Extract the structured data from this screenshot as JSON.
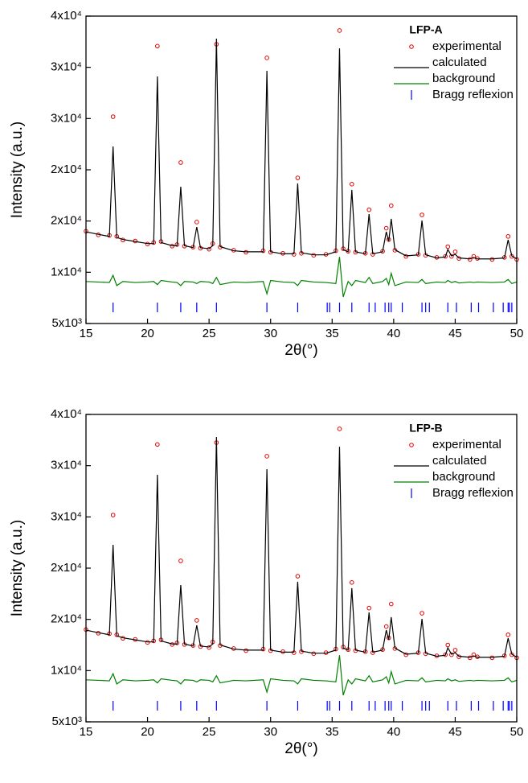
{
  "chart_data": [
    {
      "type": "line",
      "title": "LFP-A",
      "x_label": "2θ(°)",
      "y_label": "Intensity (a.u.)",
      "xlim": [
        15,
        50
      ],
      "xticks": [
        15,
        20,
        25,
        30,
        35,
        40,
        45,
        50
      ],
      "ylim": [
        5000,
        35000
      ],
      "yticks": [
        {
          "value": 5000,
          "label": "5x10³"
        },
        {
          "value": 10000,
          "label": "1x10⁴"
        },
        {
          "value": 15000,
          "label": "2x10⁴"
        },
        {
          "value": 20000,
          "label": "2x10⁴"
        },
        {
          "value": 25000,
          "label": "3x10⁴"
        },
        {
          "value": 30000,
          "label": "3x10⁴"
        },
        {
          "value": 35000,
          "label": "4x10⁴"
        }
      ],
      "x": [
        15,
        16,
        16.9,
        17.2,
        17.5,
        18,
        19,
        20,
        20.5,
        20.8,
        21.1,
        22,
        22.4,
        22.7,
        23,
        23.7,
        24,
        24.3,
        25,
        25.3,
        25.6,
        25.9,
        27,
        28,
        29.4,
        29.7,
        30,
        31,
        31.9,
        32.2,
        32.5,
        33.5,
        34.5,
        35.3,
        35.6,
        35.9,
        36.3,
        36.6,
        36.9,
        37.7,
        38,
        38.3,
        39.1,
        39.4,
        39.6,
        39.8,
        40.1,
        41,
        42,
        42.3,
        42.6,
        43.5,
        44.2,
        44.4,
        44.7,
        45,
        45.3,
        46.2,
        46.5,
        46.8,
        48,
        49,
        49.3,
        49.6,
        50
      ],
      "series": [
        {
          "name": "experimental",
          "color": "#e00000",
          "mode": "markers",
          "values": [
            14000,
            13650,
            13600,
            25180,
            13500,
            13150,
            13050,
            12750,
            12900,
            32070,
            13000,
            12550,
            12700,
            20710,
            12550,
            12450,
            14900,
            12350,
            12250,
            12800,
            32250,
            12450,
            12150,
            11950,
            12100,
            30920,
            11950,
            11850,
            11750,
            19210,
            11850,
            11650,
            11750,
            12100,
            33590,
            12300,
            12050,
            18600,
            11950,
            11850,
            16100,
            11750,
            12050,
            14300,
            13200,
            16500,
            12150,
            11550,
            11750,
            15600,
            11650,
            11450,
            11550,
            12500,
            11550,
            12000,
            11350,
            11250,
            11550,
            11350,
            11250,
            11450,
            13500,
            11550,
            11250
          ]
        },
        {
          "name": "calculated",
          "color": "#000000",
          "mode": "line",
          "values": [
            13950,
            13700,
            13500,
            22280,
            13400,
            13200,
            13000,
            12800,
            12800,
            29110,
            12900,
            12600,
            12600,
            18350,
            12600,
            12400,
            14420,
            12400,
            12300,
            12600,
            32800,
            12500,
            12100,
            12000,
            12000,
            29660,
            12000,
            11800,
            11800,
            18670,
            11900,
            11700,
            11700,
            12000,
            31850,
            12200,
            12000,
            18040,
            12000,
            11800,
            15680,
            11800,
            12000,
            13950,
            13000,
            15210,
            12200,
            11600,
            11700,
            15050,
            11700,
            11400,
            11500,
            12230,
            11600,
            11750,
            11400,
            11300,
            11440,
            11300,
            11300,
            11400,
            13170,
            11600,
            11300
          ]
        },
        {
          "name": "background",
          "color": "#008000",
          "mode": "line",
          "values": [
            9100,
            9050,
            9000,
            9700,
            8700,
            9100,
            9000,
            9050,
            9100,
            8800,
            9200,
            9050,
            9000,
            8700,
            9100,
            9050,
            8900,
            9100,
            9050,
            8900,
            9500,
            8800,
            9050,
            9000,
            9100,
            7900,
            9200,
            9050,
            9000,
            8700,
            9200,
            9050,
            9000,
            8900,
            11500,
            7600,
            9100,
            8700,
            9200,
            9000,
            9500,
            8900,
            9100,
            9400,
            8800,
            9900,
            8700,
            9050,
            9000,
            9300,
            8900,
            9050,
            9000,
            9200,
            9000,
            9100,
            8950,
            9050,
            9000,
            9050,
            9000,
            9050,
            9300,
            8900,
            9050
          ]
        },
        {
          "name": "Bragg reflexion",
          "color": "#0000ff",
          "mode": "ticks",
          "x": [
            17.2,
            20.8,
            22.7,
            24,
            25.6,
            29.7,
            32.2,
            34.6,
            34.8,
            35.6,
            36.6,
            38,
            38.5,
            39.3,
            39.6,
            39.8,
            40.7,
            42.3,
            42.6,
            42.9,
            44.4,
            45.1,
            46.3,
            46.9,
            48.1,
            48.9,
            49.3,
            49.4,
            49.6
          ],
          "values": [
            6570,
            6570,
            6570,
            6570,
            6570,
            6570,
            6570,
            6570,
            6570,
            6570,
            6570,
            6570,
            6570,
            6570,
            6570,
            6570,
            6570,
            6570,
            6570,
            6570,
            6570,
            6570,
            6570,
            6570,
            6570,
            6570,
            6570,
            6570,
            6570
          ]
        }
      ]
    },
    {
      "type": "line",
      "title": "LFP-B",
      "x_label": "2θ(°)",
      "y_label": "Intensity (a.u.)",
      "xlim": [
        15,
        50
      ],
      "xticks": [
        15,
        20,
        25,
        30,
        35,
        40,
        45,
        50
      ],
      "ylim": [
        5000,
        35000
      ],
      "yticks": [
        {
          "value": 5000,
          "label": "5x10³"
        },
        {
          "value": 10000,
          "label": "1x10⁴"
        },
        {
          "value": 15000,
          "label": "2x10⁴"
        },
        {
          "value": 20000,
          "label": "2x10⁴"
        },
        {
          "value": 25000,
          "label": "3x10⁴"
        },
        {
          "value": 30000,
          "label": "3x10⁴"
        },
        {
          "value": 35000,
          "label": "4x10⁴"
        }
      ],
      "x": [
        15,
        16,
        16.9,
        17.2,
        17.5,
        18,
        19,
        20,
        20.5,
        20.8,
        21.1,
        22,
        22.4,
        22.7,
        23,
        23.7,
        24,
        24.3,
        25,
        25.3,
        25.6,
        25.9,
        27,
        28,
        29.4,
        29.7,
        30,
        31,
        31.9,
        32.2,
        32.5,
        33.5,
        34.5,
        35.3,
        35.6,
        35.9,
        36.3,
        36.6,
        36.9,
        37.7,
        38,
        38.3,
        39.1,
        39.4,
        39.6,
        39.8,
        40.1,
        41,
        42,
        42.3,
        42.6,
        43.5,
        44.2,
        44.4,
        44.7,
        45,
        45.3,
        46.2,
        46.5,
        46.8,
        48,
        49,
        49.3,
        49.6,
        50
      ],
      "series": [
        {
          "name": "experimental",
          "color": "#e00000",
          "mode": "markers",
          "values": [
            14000,
            13650,
            13600,
            25180,
            13500,
            13150,
            13050,
            12750,
            12900,
            32070,
            13000,
            12550,
            12700,
            20710,
            12550,
            12450,
            14900,
            12350,
            12250,
            12800,
            32250,
            12450,
            12150,
            11950,
            12100,
            30920,
            11950,
            11850,
            11750,
            19210,
            11850,
            11650,
            11750,
            12100,
            33590,
            12300,
            12050,
            18600,
            11950,
            11850,
            16100,
            11750,
            12050,
            14300,
            13200,
            16500,
            12150,
            11550,
            11750,
            15600,
            11650,
            11450,
            11550,
            12500,
            11550,
            12000,
            11350,
            11250,
            11550,
            11350,
            11250,
            11450,
            13500,
            11550,
            11250
          ]
        },
        {
          "name": "calculated",
          "color": "#000000",
          "mode": "line",
          "values": [
            13950,
            13700,
            13500,
            22280,
            13400,
            13200,
            13000,
            12800,
            12800,
            29110,
            12900,
            12600,
            12600,
            18350,
            12600,
            12400,
            14420,
            12400,
            12300,
            12600,
            32800,
            12500,
            12100,
            12000,
            12000,
            29660,
            12000,
            11800,
            11800,
            18670,
            11900,
            11700,
            11700,
            12000,
            31850,
            12200,
            12000,
            18040,
            12000,
            11800,
            15680,
            11800,
            12000,
            13950,
            13000,
            15210,
            12200,
            11600,
            11700,
            15050,
            11700,
            11400,
            11500,
            12230,
            11600,
            11750,
            11400,
            11300,
            11440,
            11300,
            11300,
            11400,
            13170,
            11600,
            11300
          ]
        },
        {
          "name": "background",
          "color": "#008000",
          "mode": "line",
          "values": [
            9100,
            9050,
            9000,
            9700,
            8700,
            9100,
            9000,
            9050,
            9100,
            8800,
            9200,
            9050,
            9000,
            8700,
            9100,
            9050,
            8900,
            9100,
            9050,
            8900,
            9500,
            8800,
            9050,
            9000,
            9100,
            7900,
            9200,
            9050,
            9000,
            8700,
            9200,
            9050,
            9000,
            8900,
            11500,
            7600,
            9100,
            8700,
            9200,
            9000,
            9500,
            8900,
            9100,
            9400,
            8800,
            9900,
            8700,
            9050,
            9000,
            9300,
            8900,
            9050,
            9000,
            9200,
            9000,
            9100,
            8950,
            9050,
            9000,
            9050,
            9000,
            9050,
            9300,
            8900,
            9050
          ]
        },
        {
          "name": "Bragg reflexion",
          "color": "#0000ff",
          "mode": "ticks",
          "x": [
            17.2,
            20.8,
            22.7,
            24,
            25.6,
            29.7,
            32.2,
            34.6,
            34.8,
            35.6,
            36.6,
            38,
            38.5,
            39.3,
            39.6,
            39.8,
            40.7,
            42.3,
            42.6,
            42.9,
            44.4,
            45.1,
            46.3,
            46.9,
            48.1,
            48.9,
            49.3,
            49.4,
            49.6
          ],
          "values": [
            6570,
            6570,
            6570,
            6570,
            6570,
            6570,
            6570,
            6570,
            6570,
            6570,
            6570,
            6570,
            6570,
            6570,
            6570,
            6570,
            6570,
            6570,
            6570,
            6570,
            6570,
            6570,
            6570,
            6570,
            6570,
            6570,
            6570,
            6570,
            6570
          ]
        }
      ]
    }
  ]
}
